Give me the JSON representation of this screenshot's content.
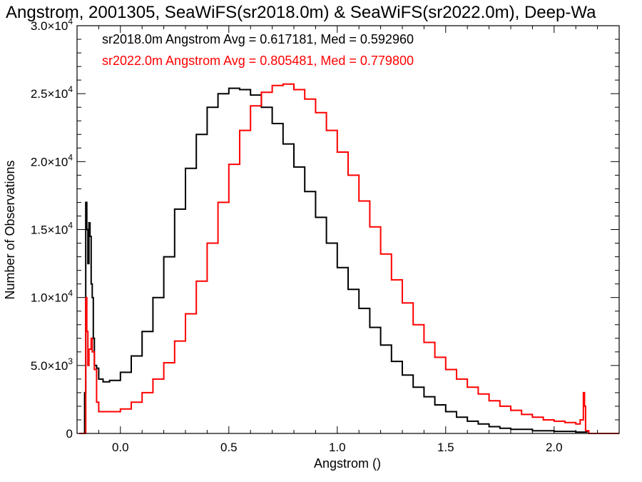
{
  "chart_data": {
    "type": "line",
    "title": "Angstrom, 2001305, SeaWiFS(sr2018.0m) & SeaWiFS(sr2022.0m), Deep-Wa",
    "xlabel": "Angstrom ()",
    "ylabel": "Number of Observations",
    "xlim": [
      -0.2,
      2.3
    ],
    "ylim": [
      0,
      30000
    ],
    "grid": false,
    "x_ticks": [
      0.0,
      0.5,
      1.0,
      1.5,
      2.0
    ],
    "x_tick_labels": [
      "0.0",
      "0.5",
      "1.0",
      "1.5",
      "2.0"
    ],
    "y_ticks": [
      0,
      5000,
      10000,
      15000,
      20000,
      25000,
      30000
    ],
    "y_tick_labels": [
      {
        "mantissa": "0",
        "exponent": ""
      },
      {
        "mantissa": "5.0×10",
        "exponent": "3"
      },
      {
        "mantissa": "1.0×10",
        "exponent": "4"
      },
      {
        "mantissa": "1.5×10",
        "exponent": "4"
      },
      {
        "mantissa": "2.0×10",
        "exponent": "4"
      },
      {
        "mantissa": "2.5×10",
        "exponent": "4"
      },
      {
        "mantissa": "3.0×10",
        "exponent": "4"
      }
    ],
    "annotations": [
      {
        "text": "sr2018.0m Angstrom Avg = 0.617181, Med = 0.592960",
        "color": "#000000"
      },
      {
        "text": "sr2022.0m Angstrom Avg = 0.805481, Med = 0.779800",
        "color": "#ff0000"
      }
    ],
    "series": [
      {
        "color": "#000000",
        "points": [
          [
            -0.19,
            0
          ],
          [
            -0.17,
            0
          ],
          [
            -0.165,
            3000
          ],
          [
            -0.16,
            17000
          ],
          [
            -0.155,
            15000
          ],
          [
            -0.15,
            12500
          ],
          [
            -0.145,
            15500
          ],
          [
            -0.14,
            14500
          ],
          [
            -0.135,
            11000
          ],
          [
            -0.13,
            10000
          ],
          [
            -0.125,
            7000
          ],
          [
            -0.12,
            5000
          ],
          [
            -0.11,
            4800
          ],
          [
            -0.1,
            4000
          ],
          [
            -0.08,
            3800
          ],
          [
            -0.05,
            3900
          ],
          [
            0.0,
            4500
          ],
          [
            0.05,
            5700
          ],
          [
            0.1,
            7500
          ],
          [
            0.15,
            10000
          ],
          [
            0.2,
            13000
          ],
          [
            0.25,
            16500
          ],
          [
            0.3,
            19500
          ],
          [
            0.35,
            22000
          ],
          [
            0.4,
            24000
          ],
          [
            0.45,
            25000
          ],
          [
            0.5,
            25400
          ],
          [
            0.55,
            25300
          ],
          [
            0.6,
            24900
          ],
          [
            0.65,
            24000
          ],
          [
            0.7,
            22800
          ],
          [
            0.75,
            21300
          ],
          [
            0.8,
            19600
          ],
          [
            0.85,
            17800
          ],
          [
            0.9,
            15900
          ],
          [
            0.95,
            14000
          ],
          [
            1.0,
            12200
          ],
          [
            1.05,
            10600
          ],
          [
            1.1,
            9200
          ],
          [
            1.15,
            7800
          ],
          [
            1.2,
            6500
          ],
          [
            1.25,
            5300
          ],
          [
            1.3,
            4300
          ],
          [
            1.35,
            3400
          ],
          [
            1.4,
            2700
          ],
          [
            1.45,
            2100
          ],
          [
            1.5,
            1600
          ],
          [
            1.55,
            1200
          ],
          [
            1.6,
            900
          ],
          [
            1.65,
            700
          ],
          [
            1.7,
            500
          ],
          [
            1.75,
            380
          ],
          [
            1.8,
            300
          ],
          [
            1.9,
            200
          ],
          [
            2.0,
            150
          ],
          [
            2.1,
            100
          ],
          [
            2.15,
            150
          ],
          [
            2.16,
            0
          ],
          [
            2.3,
            0
          ]
        ]
      },
      {
        "color": "#ff0000",
        "points": [
          [
            -0.19,
            0
          ],
          [
            -0.165,
            0
          ],
          [
            -0.16,
            10000
          ],
          [
            -0.155,
            7500
          ],
          [
            -0.15,
            5000
          ],
          [
            -0.145,
            6200
          ],
          [
            -0.14,
            6200
          ],
          [
            -0.135,
            7000
          ],
          [
            -0.13,
            6000
          ],
          [
            -0.12,
            4700
          ],
          [
            -0.11,
            2300
          ],
          [
            -0.1,
            1600
          ],
          [
            -0.05,
            1600
          ],
          [
            0.0,
            1800
          ],
          [
            0.05,
            2300
          ],
          [
            0.1,
            3000
          ],
          [
            0.15,
            4000
          ],
          [
            0.2,
            5200
          ],
          [
            0.25,
            6800
          ],
          [
            0.3,
            8800
          ],
          [
            0.35,
            11200
          ],
          [
            0.4,
            14000
          ],
          [
            0.45,
            17000
          ],
          [
            0.5,
            19800
          ],
          [
            0.55,
            22300
          ],
          [
            0.6,
            24100
          ],
          [
            0.65,
            25100
          ],
          [
            0.7,
            25600
          ],
          [
            0.75,
            25700
          ],
          [
            0.8,
            25300
          ],
          [
            0.85,
            24600
          ],
          [
            0.9,
            23600
          ],
          [
            0.95,
            22300
          ],
          [
            1.0,
            20700
          ],
          [
            1.05,
            19000
          ],
          [
            1.1,
            17100
          ],
          [
            1.15,
            15200
          ],
          [
            1.2,
            13200
          ],
          [
            1.25,
            11300
          ],
          [
            1.3,
            9600
          ],
          [
            1.35,
            8000
          ],
          [
            1.4,
            6700
          ],
          [
            1.45,
            5600
          ],
          [
            1.5,
            4700
          ],
          [
            1.55,
            4000
          ],
          [
            1.6,
            3400
          ],
          [
            1.65,
            2900
          ],
          [
            1.7,
            2400
          ],
          [
            1.75,
            2000
          ],
          [
            1.8,
            1700
          ],
          [
            1.85,
            1400
          ],
          [
            1.9,
            1200
          ],
          [
            1.95,
            1000
          ],
          [
            2.0,
            900
          ],
          [
            2.05,
            800
          ],
          [
            2.1,
            700
          ],
          [
            2.12,
            1000
          ],
          [
            2.135,
            3000
          ],
          [
            2.14,
            2000
          ],
          [
            2.145,
            200
          ],
          [
            2.16,
            0
          ],
          [
            2.3,
            0
          ]
        ]
      }
    ]
  }
}
